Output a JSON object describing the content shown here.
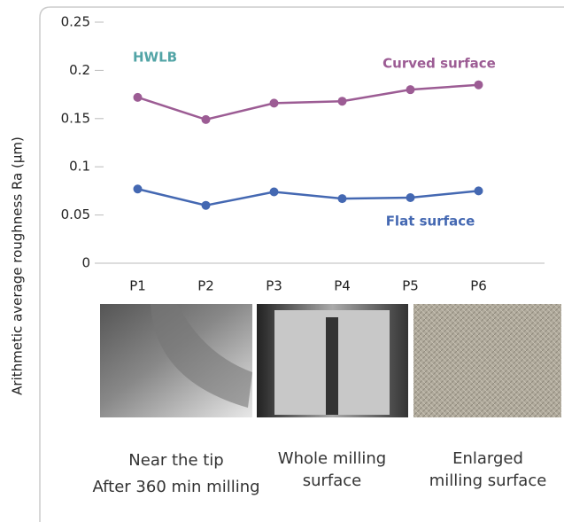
{
  "chart_data": {
    "type": "line",
    "y_label": "Arithmetic average roughness Ra (μm)",
    "categories": [
      "P1",
      "P2",
      "P3",
      "P4",
      "P5",
      "P6"
    ],
    "series": [
      {
        "name": "Curved surface",
        "color": "#9c5c94",
        "values": [
          0.172,
          0.149,
          0.166,
          0.168,
          0.18,
          0.185
        ]
      },
      {
        "name": "Flat surface",
        "color": "#4468b2",
        "values": [
          0.077,
          0.06,
          0.074,
          0.067,
          0.068,
          0.075
        ]
      }
    ],
    "ylim": [
      0,
      0.25
    ],
    "yticks": [
      0,
      0.05,
      0.1,
      0.15,
      0.2,
      0.25
    ],
    "annotations": [
      {
        "text": "HWLB",
        "color": "#52a4a6"
      }
    ]
  },
  "images": [
    {
      "caption": [
        "Near the tip",
        "After 360 min milling"
      ]
    },
    {
      "caption": [
        "Whole milling",
        "surface"
      ]
    },
    {
      "caption": [
        "Enlarged",
        "milling surface"
      ]
    }
  ]
}
